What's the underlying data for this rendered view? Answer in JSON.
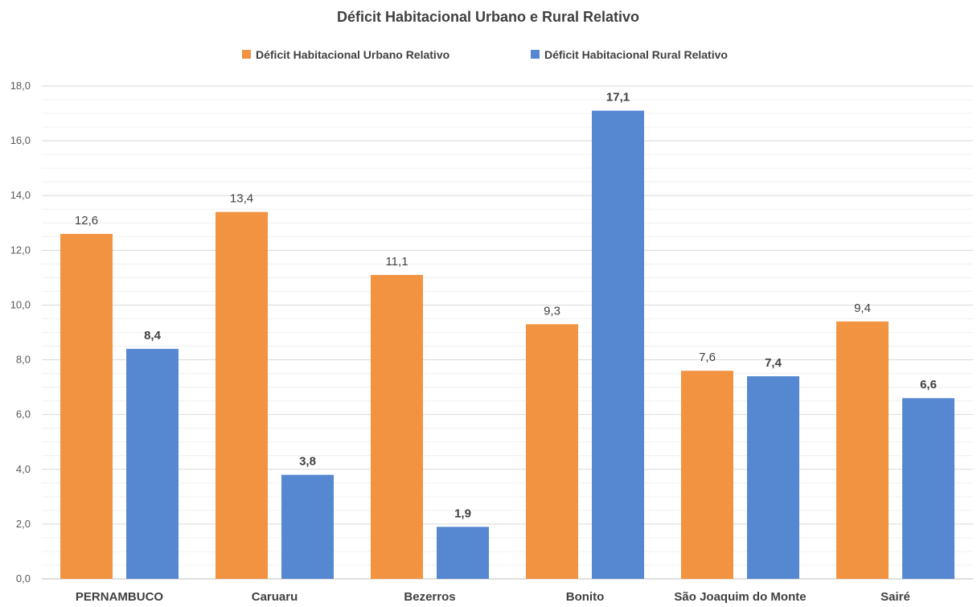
{
  "chart_data": {
    "type": "bar",
    "title": "Déficit Habitacional Urbano e Rural Relativo",
    "xlabel": "",
    "ylabel": "",
    "categories": [
      "PERNAMBUCO",
      "Caruaru",
      "Bezerros",
      "Bonito",
      "São Joaquim do Monte",
      "Sairé"
    ],
    "series": [
      {
        "name": "Déficit Habitacional Urbano Relativo",
        "color": "#F29341",
        "values": [
          12.6,
          13.4,
          11.1,
          9.3,
          7.6,
          9.4
        ],
        "labels": [
          "12,6",
          "13,4",
          "11,1",
          "9,3",
          "7,6",
          "9,4"
        ],
        "label_bold": false
      },
      {
        "name": "Déficit Habitacional Rural Relativo",
        "color": "#5688D1",
        "values": [
          8.4,
          3.8,
          1.9,
          17.1,
          7.4,
          6.6
        ],
        "labels": [
          "8,4",
          "3,8",
          "1,9",
          "17,1",
          "7,4",
          "6,6"
        ],
        "label_bold": true
      }
    ],
    "ylim": [
      0,
      18
    ],
    "y_ticks": [
      0,
      2,
      4,
      6,
      8,
      10,
      12,
      14,
      16,
      18
    ],
    "y_tick_labels": [
      "0,0",
      "2,0",
      "4,0",
      "6,0",
      "8,0",
      "10,0",
      "12,0",
      "14,0",
      "16,0",
      "18,0"
    ],
    "grid": true,
    "legend_position": "top-center"
  }
}
